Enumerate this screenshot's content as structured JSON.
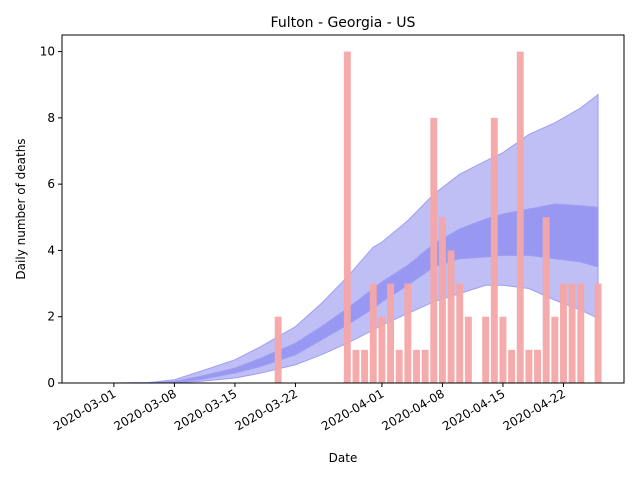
{
  "chart_data": {
    "type": "bar",
    "title": "Fulton - Georgia - US",
    "xlabel": "Date",
    "ylabel": "Daily number of deaths",
    "xlim": [
      "2020-02-24",
      "2020-04-29"
    ],
    "ylim": [
      0,
      10.5
    ],
    "x_ticks": [
      "2020-03-01",
      "2020-03-08",
      "2020-03-15",
      "2020-03-22",
      "2020-04-01",
      "2020-04-08",
      "2020-04-15",
      "2020-04-22"
    ],
    "y_ticks": [
      0,
      2,
      4,
      6,
      8,
      10
    ],
    "grid": false,
    "colors": {
      "bars": "#f4a6a6",
      "band_outer": "#bcbcf5",
      "band_inner": "#8f8ff2",
      "band_edge": "#9e9ef2"
    },
    "series": [
      {
        "type": "bar",
        "dates": [
          "2020-03-20",
          "2020-03-28",
          "2020-03-29",
          "2020-03-30",
          "2020-03-31",
          "2020-04-01",
          "2020-04-02",
          "2020-04-03",
          "2020-04-04",
          "2020-04-05",
          "2020-04-06",
          "2020-04-07",
          "2020-04-08",
          "2020-04-09",
          "2020-04-10",
          "2020-04-11",
          "2020-04-13",
          "2020-04-14",
          "2020-04-15",
          "2020-04-16",
          "2020-04-17",
          "2020-04-18",
          "2020-04-19",
          "2020-04-20",
          "2020-04-21",
          "2020-04-22",
          "2020-04-23",
          "2020-04-24",
          "2020-04-26"
        ],
        "values": [
          2,
          10,
          1,
          1,
          3,
          2,
          3,
          1,
          3,
          1,
          1,
          8,
          5,
          4,
          3,
          2,
          2,
          8,
          2,
          1,
          10,
          1,
          1,
          5,
          2,
          3,
          3,
          3,
          3
        ]
      },
      {
        "type": "band",
        "dates": [
          "2020-03-01",
          "2020-03-05",
          "2020-03-08",
          "2020-03-11",
          "2020-03-15",
          "2020-03-18",
          "2020-03-22",
          "2020-03-25",
          "2020-03-28",
          "2020-03-31",
          "2020-04-01",
          "2020-04-04",
          "2020-04-07",
          "2020-04-10",
          "2020-04-13",
          "2020-04-15",
          "2020-04-18",
          "2020-04-21",
          "2020-04-24",
          "2020-04-26"
        ],
        "lower": [
          0,
          0,
          0.01,
          0.05,
          0.15,
          0.3,
          0.55,
          0.85,
          1.2,
          1.6,
          1.75,
          2.1,
          2.45,
          2.7,
          2.95,
          2.95,
          2.85,
          2.5,
          2.2,
          1.95
        ],
        "upper": [
          0,
          0.01,
          0.1,
          0.35,
          0.7,
          1.1,
          1.7,
          2.4,
          3.2,
          4.1,
          4.25,
          4.9,
          5.7,
          6.3,
          6.7,
          6.95,
          7.5,
          7.85,
          8.3,
          8.7
        ]
      },
      {
        "type": "band",
        "dates": [
          "2020-03-01",
          "2020-03-05",
          "2020-03-08",
          "2020-03-11",
          "2020-03-15",
          "2020-03-18",
          "2020-03-22",
          "2020-03-25",
          "2020-03-28",
          "2020-03-31",
          "2020-04-01",
          "2020-04-04",
          "2020-04-07",
          "2020-04-10",
          "2020-04-13",
          "2020-04-15",
          "2020-04-18",
          "2020-04-21",
          "2020-04-24",
          "2020-04-26"
        ],
        "lower": [
          0,
          0,
          0.02,
          0.1,
          0.3,
          0.5,
          0.85,
          1.3,
          1.75,
          2.25,
          2.45,
          2.95,
          3.5,
          3.75,
          3.8,
          3.85,
          3.85,
          3.75,
          3.65,
          3.5
        ],
        "upper": [
          0,
          0.01,
          0.05,
          0.2,
          0.45,
          0.75,
          1.2,
          1.7,
          2.25,
          2.85,
          3.05,
          3.55,
          4.2,
          4.65,
          4.95,
          5.1,
          5.25,
          5.4,
          5.35,
          5.3
        ]
      }
    ]
  }
}
